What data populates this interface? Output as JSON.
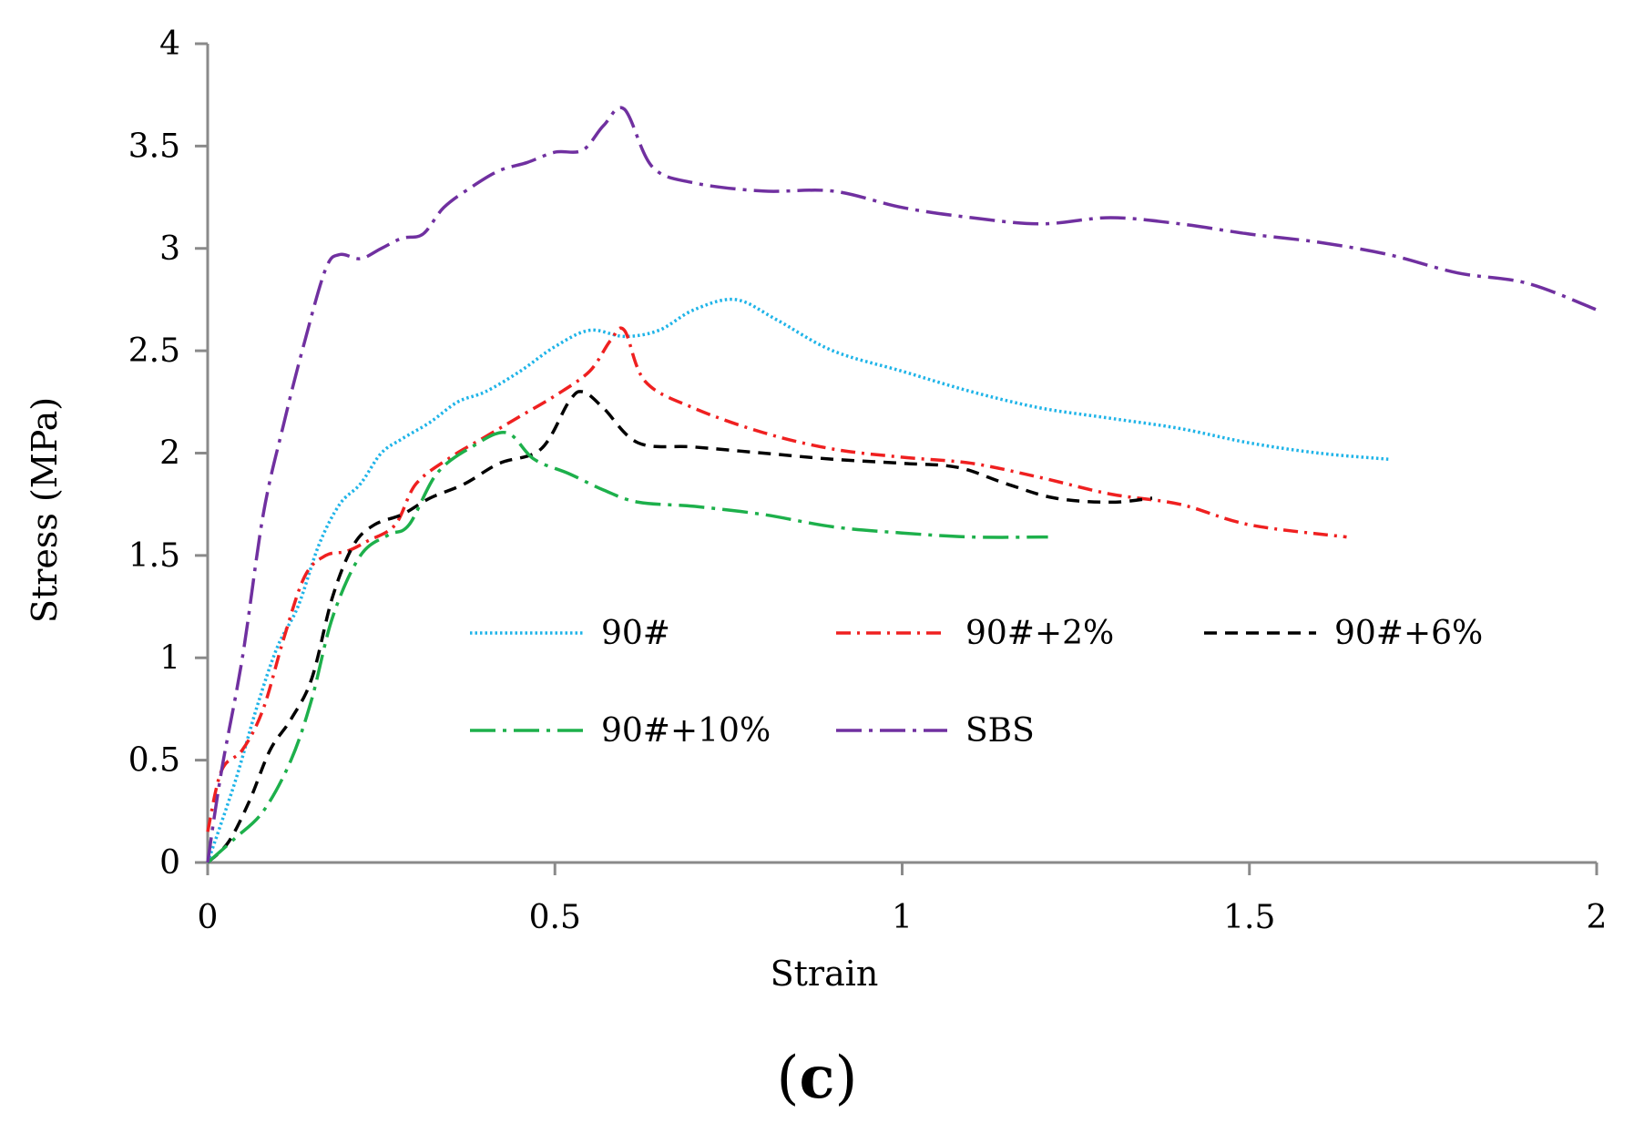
{
  "chart_data": {
    "type": "line",
    "title": "",
    "xlabel": "Strain",
    "ylabel": "Stress (MPa)",
    "xlim": [
      0,
      2
    ],
    "ylim": [
      0,
      4
    ],
    "xticks": [
      0,
      0.5,
      1,
      1.5,
      2
    ],
    "xtick_labels": [
      "0",
      "0.5",
      "1",
      "1.5",
      "2"
    ],
    "yticks": [
      0,
      0.5,
      1,
      1.5,
      2,
      2.5,
      3,
      3.5,
      4
    ],
    "ytick_labels": [
      "0",
      "0.5",
      "1",
      "1.5",
      "2",
      "2.5",
      "3",
      "3.5",
      "4"
    ],
    "grid": false,
    "legend_position": "center",
    "panel_label": {
      "open": "(",
      "letter": "c",
      "close": ")"
    },
    "series": [
      {
        "name": "90#",
        "color": "#1fb4e8",
        "dash": "dotted",
        "x": [
          0,
          0.04,
          0.07,
          0.1,
          0.13,
          0.16,
          0.19,
          0.22,
          0.25,
          0.28,
          0.32,
          0.36,
          0.4,
          0.45,
          0.5,
          0.55,
          0.6,
          0.65,
          0.7,
          0.76,
          0.82,
          0.9,
          1.0,
          1.1,
          1.2,
          1.3,
          1.4,
          1.5,
          1.6,
          1.7
        ],
        "y": [
          0,
          0.4,
          0.75,
          1.05,
          1.25,
          1.55,
          1.75,
          1.85,
          2.0,
          2.07,
          2.15,
          2.25,
          2.3,
          2.4,
          2.52,
          2.6,
          2.57,
          2.6,
          2.7,
          2.75,
          2.65,
          2.5,
          2.4,
          2.3,
          2.22,
          2.17,
          2.12,
          2.05,
          2.0,
          1.97
        ]
      },
      {
        "name": "90#+2%",
        "color": "#ef2020",
        "dash": "dash-dot",
        "x": [
          0,
          0.02,
          0.05,
          0.08,
          0.11,
          0.14,
          0.17,
          0.2,
          0.23,
          0.27,
          0.3,
          0.35,
          0.4,
          0.45,
          0.5,
          0.55,
          0.58,
          0.6,
          0.63,
          0.7,
          0.8,
          0.9,
          1.0,
          1.1,
          1.2,
          1.3,
          1.4,
          1.5,
          1.64
        ],
        "y": [
          0.15,
          0.45,
          0.55,
          0.75,
          1.1,
          1.4,
          1.5,
          1.52,
          1.57,
          1.65,
          1.85,
          1.98,
          2.08,
          2.18,
          2.28,
          2.4,
          2.55,
          2.6,
          2.35,
          2.22,
          2.1,
          2.02,
          1.98,
          1.95,
          1.88,
          1.8,
          1.75,
          1.65,
          1.59
        ]
      },
      {
        "name": "90#+6%",
        "color": "#000000",
        "dash": "dashed",
        "x": [
          0,
          0.03,
          0.06,
          0.09,
          0.12,
          0.15,
          0.18,
          0.21,
          0.24,
          0.28,
          0.32,
          0.37,
          0.42,
          0.48,
          0.52,
          0.54,
          0.57,
          0.62,
          0.7,
          0.8,
          0.9,
          1.0,
          1.08,
          1.15,
          1.22,
          1.3,
          1.36
        ],
        "y": [
          0,
          0.1,
          0.3,
          0.55,
          0.7,
          0.9,
          1.3,
          1.55,
          1.65,
          1.7,
          1.78,
          1.85,
          1.95,
          2.02,
          2.25,
          2.3,
          2.22,
          2.05,
          2.03,
          2.0,
          1.97,
          1.95,
          1.93,
          1.85,
          1.78,
          1.76,
          1.78
        ]
      },
      {
        "name": "90#+10%",
        "color": "#1db04b",
        "dash": "long-dash-dot",
        "x": [
          0,
          0.04,
          0.08,
          0.12,
          0.15,
          0.18,
          0.22,
          0.26,
          0.29,
          0.33,
          0.38,
          0.43,
          0.47,
          0.52,
          0.57,
          0.62,
          0.7,
          0.8,
          0.9,
          1.0,
          1.1,
          1.21
        ],
        "y": [
          0,
          0.12,
          0.25,
          0.5,
          0.8,
          1.2,
          1.5,
          1.6,
          1.65,
          1.9,
          2.03,
          2.1,
          1.97,
          1.9,
          1.82,
          1.76,
          1.74,
          1.7,
          1.64,
          1.61,
          1.59,
          1.59
        ]
      },
      {
        "name": "SBS",
        "color": "#7030a0",
        "dash": "long-dash-dot",
        "x": [
          0,
          0.02,
          0.05,
          0.08,
          0.11,
          0.14,
          0.17,
          0.19,
          0.22,
          0.25,
          0.28,
          0.31,
          0.34,
          0.38,
          0.42,
          0.46,
          0.5,
          0.54,
          0.57,
          0.6,
          0.64,
          0.7,
          0.8,
          0.9,
          1.0,
          1.1,
          1.2,
          1.3,
          1.4,
          1.5,
          1.6,
          1.7,
          1.8,
          1.9,
          2.0
        ],
        "y": [
          0,
          0.45,
          1.0,
          1.7,
          2.15,
          2.55,
          2.9,
          2.97,
          2.95,
          3.0,
          3.05,
          3.07,
          3.2,
          3.3,
          3.38,
          3.42,
          3.47,
          3.48,
          3.6,
          3.68,
          3.4,
          3.32,
          3.28,
          3.28,
          3.2,
          3.15,
          3.12,
          3.15,
          3.12,
          3.07,
          3.03,
          2.97,
          2.88,
          2.83,
          2.7
        ]
      }
    ]
  }
}
